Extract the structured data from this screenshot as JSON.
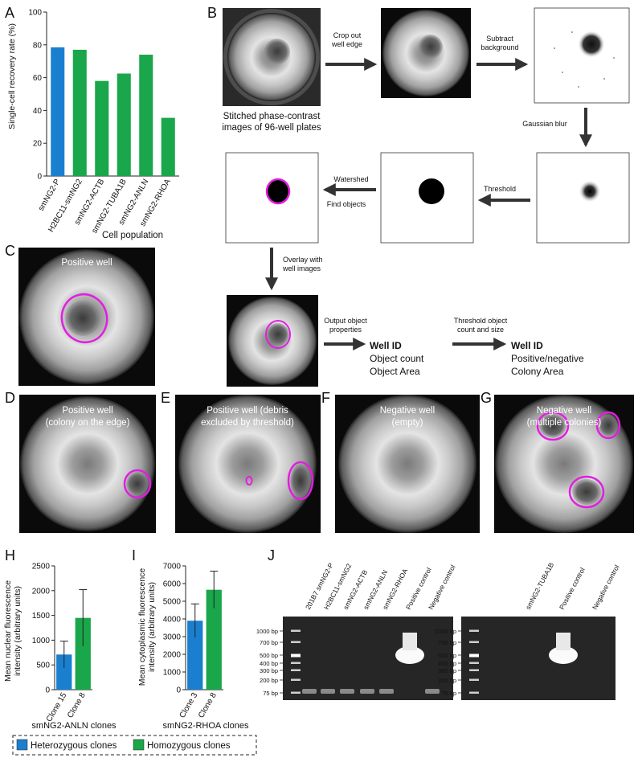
{
  "panel_letters": {
    "A": "A",
    "B": "B",
    "C": "C",
    "D": "D",
    "E": "E",
    "F": "F",
    "G": "G",
    "H": "H",
    "I": "I",
    "J": "J"
  },
  "colors": {
    "heterozygous": "#1a7fcf",
    "homozygous": "#1aa64a",
    "outline": "#e21ee0"
  },
  "chart_data": [
    {
      "type": "bar",
      "panel": "A",
      "categories": [
        "smNG2-P",
        "H2BC11-smNG2",
        "smNG2-ACTB",
        "smNG2-TUBA1B",
        "smNG2-ANLN",
        "smNG2-RHOA"
      ],
      "values": [
        78.5,
        77,
        58,
        62.5,
        74,
        35.5
      ],
      "bar_colors": [
        "#1a7fcf",
        "#1aa64a",
        "#1aa64a",
        "#1aa64a",
        "#1aa64a",
        "#1aa64a"
      ],
      "xlabel": "Cell population",
      "ylabel": "Single-cell recovery rate (%)",
      "ylim": [
        0,
        100
      ],
      "yticks": [
        "0",
        "20",
        "40",
        "60",
        "80",
        "100"
      ]
    },
    {
      "type": "bar",
      "panel": "H",
      "categories": [
        "Clone 15",
        "Clone 8"
      ],
      "values": [
        710,
        1450
      ],
      "errors": [
        270,
        570
      ],
      "bar_colors": [
        "#1a7fcf",
        "#1aa64a"
      ],
      "xlabel": "smNG2-ANLN clones",
      "ylabel": "Mean nuclear fluorescence intensity (arbitrary units)",
      "ylim": [
        0,
        2500
      ],
      "yticks": [
        "0",
        "500",
        "1000",
        "1500",
        "2000",
        "2500"
      ]
    },
    {
      "type": "bar",
      "panel": "I",
      "categories": [
        "Clone 3",
        "Clone 8"
      ],
      "values": [
        3900,
        5650
      ],
      "errors": [
        950,
        1050
      ],
      "bar_colors": [
        "#1a7fcf",
        "#1aa64a"
      ],
      "xlabel": "smNG2-RHOA clones",
      "ylabel": "Mean cytoplasmic fluorescence intensity (arbitrary units)",
      "ylim": [
        0,
        7000
      ],
      "yticks": [
        "0",
        "1000",
        "2000",
        "3000",
        "4000",
        "5000",
        "6000",
        "7000"
      ]
    }
  ],
  "panelA": {
    "ylabel_line": "Single-cell recovery rate (%)",
    "xlabel": "Cell population"
  },
  "panelB": {
    "caption_line1": "Stitched phase-contrast",
    "caption_line2": "images of 96-well plates",
    "step_crop_1": "Crop out",
    "step_crop_2": "well edge",
    "step_subtract_1": "Subtract",
    "step_subtract_2": "background",
    "step_blur": "Gaussian blur",
    "step_threshold": "Threshold",
    "step_watershed": "Watershed",
    "step_find": "Find objects",
    "step_overlay_1": "Overlay with",
    "step_overlay_2": "well images",
    "step_output_1": "Output object",
    "step_output_2": "properties",
    "out1_title": "Well ID",
    "out1_line1": "Object count",
    "out1_line2": "Object Area",
    "step_thr2_1": "Threshold object",
    "step_thr2_2": "count and size",
    "out2_title": "Well ID",
    "out2_line1": "Positive/negative",
    "out2_line2": "Colony Area"
  },
  "wells": {
    "C": "Positive well",
    "D1": "Positive well",
    "D2": "(colony on the edge)",
    "E1": "Positive well (debris",
    "E2": "excluded by threshold)",
    "F1": "Negative well",
    "F2": "(empty)",
    "G1": "Negative well",
    "G2": "(multiple colonies)"
  },
  "panelH": {
    "ylabel1": "Mean nuclear fluorescence",
    "ylabel2": "intensity (arbitrary units)",
    "xlabel": "smNG2-ANLN clones"
  },
  "panelI": {
    "ylabel1": "Mean cytoplasmic fluorescence",
    "ylabel2": "intensity (arbitrary units)",
    "xlabel": "smNG2-RHOA clones"
  },
  "legend": {
    "het": "Heterozygous clones",
    "hom": "Homozygous clones"
  },
  "gel": {
    "ladder_left": [
      "1000 bp",
      "700 bp",
      "500 bp",
      "400 bp",
      "300 bp",
      "200 bp",
      "75 bp"
    ],
    "lanes_left": [
      "201B7 smNG2-P",
      "H2BC11-smNG2",
      "smNG2-ACTB",
      "smNG2-ANLN",
      "smNG2-RHOA",
      "Positive control",
      "Negative control"
    ],
    "lanes_right": [
      "smNG2-TUBA1B",
      "Positive control",
      "Negative control"
    ]
  }
}
